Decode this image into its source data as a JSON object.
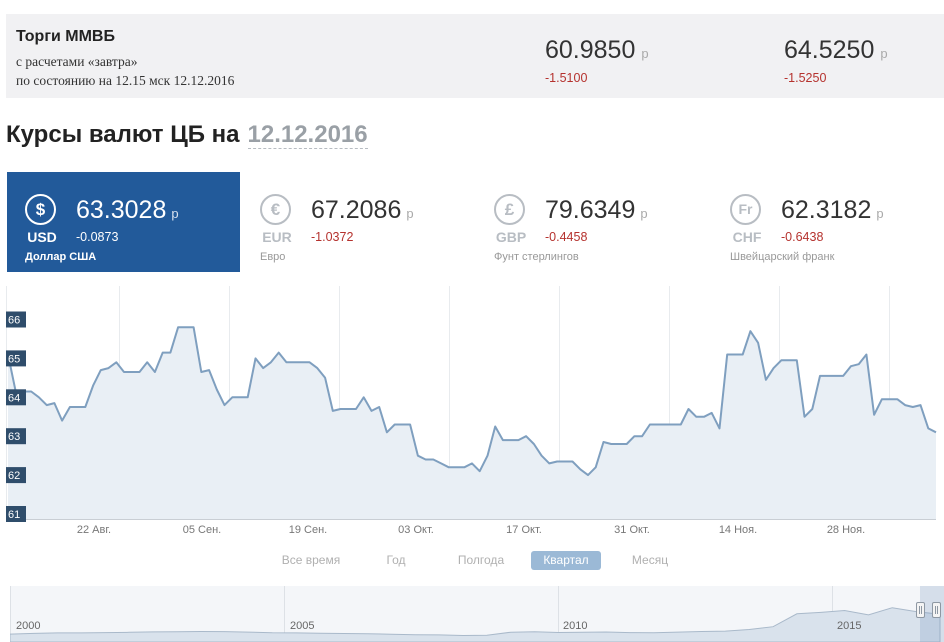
{
  "micex": {
    "title": "Торги ММВБ",
    "subtitle_line1": "с расчетами «завтра»",
    "subtitle_line2": "по состоянию на 12.15 мск 12.12.2016",
    "quotes": [
      {
        "value": "60.9850",
        "currency": "р",
        "change": "-1.5100"
      },
      {
        "value": "64.5250",
        "currency": "р",
        "change": "-1.5250"
      }
    ]
  },
  "heading": {
    "text": "Курсы валют ЦБ на",
    "date": "12.12.2016"
  },
  "currencies": [
    {
      "symbol": "$",
      "code": "USD",
      "rate": "63.3028",
      "currency": "р",
      "change": "-0.0873",
      "name": "Доллар США",
      "active": true,
      "icon": "dollar-icon"
    },
    {
      "symbol": "€",
      "code": "EUR",
      "rate": "67.2086",
      "currency": "р",
      "change": "-1.0372",
      "name": "Евро",
      "active": false,
      "icon": "euro-icon"
    },
    {
      "symbol": "£",
      "code": "GBP",
      "rate": "79.6349",
      "currency": "р",
      "change": "-0.4458",
      "name": "Фунт стерлингов",
      "active": false,
      "icon": "pound-icon"
    },
    {
      "symbol": "Fr",
      "code": "CHF",
      "rate": "62.3182",
      "currency": "р",
      "change": "-0.6438",
      "name": "Швейцарский франк",
      "active": false,
      "icon": "franc-icon"
    }
  ],
  "periods": {
    "all": "Все время",
    "year": "Год",
    "half": "Полгода",
    "quarter": "Квартал",
    "month": "Месяц",
    "active": "quarter"
  },
  "colors": {
    "accent": "#225a9a",
    "line": "#7f9fbf",
    "area": "#e9eff5",
    "negative": "#b5322e",
    "active_period": "#9bb9d6"
  },
  "chart_data": {
    "type": "area",
    "xlabel": "",
    "ylabel": "",
    "ylim": [
      61,
      66.5
    ],
    "yticks": [
      "61",
      "62",
      "63",
      "64",
      "65",
      "66"
    ],
    "xticks": [
      "22 Авг.",
      "05 Сен.",
      "19 Сен.",
      "03 Окт.",
      "17 Окт.",
      "31 Окт.",
      "14 Ноя.",
      "28 Ноя."
    ],
    "grid": "vertical",
    "x_start": "2016-08-12",
    "series": [
      {
        "values": [
          65.1,
          64.15,
          64.15,
          64.15,
          64.0,
          63.8,
          63.85,
          63.4,
          63.75,
          63.75,
          63.75,
          64.3,
          64.7,
          64.75,
          64.9,
          64.65,
          64.65,
          64.65,
          64.9,
          64.65,
          65.15,
          65.15,
          65.8,
          65.8,
          65.8,
          64.65,
          64.7,
          64.2,
          63.8,
          64.0,
          64.0,
          64.0,
          65.0,
          64.75,
          64.9,
          65.15,
          64.9,
          64.9,
          64.9,
          64.9,
          64.75,
          64.5,
          63.65,
          63.7,
          63.7,
          63.7,
          64.0,
          63.65,
          63.75,
          63.1,
          63.3,
          63.3,
          63.3,
          62.5,
          62.4,
          62.4,
          62.3,
          62.2,
          62.2,
          62.2,
          62.3,
          62.1,
          62.5,
          63.25,
          62.9,
          62.9,
          62.9,
          63.0,
          62.8,
          62.5,
          62.3,
          62.35,
          62.35,
          62.35,
          62.15,
          62.0,
          62.2,
          62.85,
          62.8,
          62.8,
          62.8,
          63.0,
          63.0,
          63.3,
          63.3,
          63.3,
          63.3,
          63.3,
          63.7,
          63.5,
          63.5,
          63.6,
          63.2,
          65.1,
          65.1,
          65.1,
          65.7,
          65.4,
          64.45,
          64.75,
          64.95,
          64.95,
          64.95,
          63.5,
          63.7,
          64.55,
          64.55,
          64.55,
          64.55,
          64.8,
          64.85,
          65.1,
          63.55,
          63.95,
          63.95,
          63.95,
          63.8,
          63.75,
          63.8,
          63.2,
          63.1
        ]
      }
    ]
  },
  "navigator": {
    "labels": [
      "2000",
      "2005",
      "2010",
      "2015"
    ],
    "values": [
      27.0,
      28.4,
      29.2,
      29.3,
      29.8,
      30.3,
      31.1,
      31.5,
      31.9,
      31.6,
      30.8,
      29.5,
      29.2,
      28.5,
      28.2,
      27.9,
      26.8,
      26.0,
      25.6,
      24.6,
      25.0,
      30.5,
      31.2,
      30.0,
      30.3,
      31.0,
      29.8,
      29.6,
      30.8,
      31.9,
      32.5,
      35.5,
      40.5,
      64.0,
      66.5,
      70.0,
      62.0,
      75.0,
      68.0,
      63.3
    ]
  }
}
